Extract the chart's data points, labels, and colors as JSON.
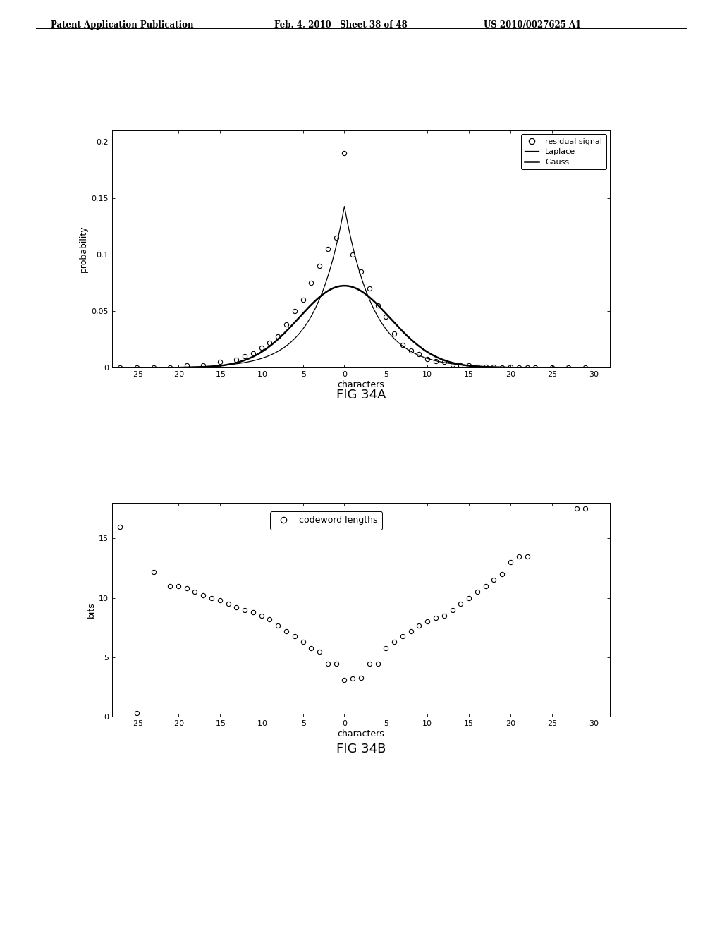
{
  "header_left": "Patent Application Publication",
  "header_mid": "Feb. 4, 2010   Sheet 38 of 48",
  "header_right": "US 2010/0027625 A1",
  "fig_a_caption": "FIG 34A",
  "fig_b_caption": "FIG 34B",
  "fig_a": {
    "ylabel": "probability",
    "xlabel": "characters",
    "xlim": [
      -28,
      32
    ],
    "ylim": [
      0,
      0.21
    ],
    "yticks": [
      0,
      0.05,
      0.1,
      0.15,
      0.2
    ],
    "ytick_labels": [
      "0",
      "0,05",
      "0,1",
      "0,15",
      "0,2"
    ],
    "xticks": [
      -25,
      -20,
      -15,
      -10,
      -5,
      0,
      5,
      10,
      15,
      20,
      25,
      30
    ],
    "residual_x": [
      -27,
      -25,
      -23,
      -21,
      -19,
      -17,
      -15,
      -13,
      -12,
      -11,
      -10,
      -9,
      -8,
      -7,
      -6,
      -5,
      -4,
      -3,
      -2,
      -1,
      0,
      1,
      2,
      3,
      4,
      5,
      6,
      7,
      8,
      9,
      10,
      11,
      12,
      13,
      14,
      15,
      16,
      17,
      18,
      19,
      20,
      21,
      22,
      23,
      25,
      27,
      29
    ],
    "residual_y": [
      0.0,
      0.0,
      0.0,
      0.0,
      0.002,
      0.002,
      0.005,
      0.007,
      0.01,
      0.013,
      0.018,
      0.022,
      0.028,
      0.038,
      0.05,
      0.06,
      0.075,
      0.09,
      0.105,
      0.115,
      0.19,
      0.1,
      0.085,
      0.07,
      0.055,
      0.045,
      0.03,
      0.02,
      0.015,
      0.012,
      0.008,
      0.006,
      0.005,
      0.003,
      0.002,
      0.002,
      0.001,
      0.001,
      0.001,
      0.0,
      0.001,
      0.0,
      0.0,
      0.0,
      0.0,
      0.0,
      0.0
    ],
    "laplace_b": 3.5,
    "gauss_sigma": 5.5,
    "legend_labels": [
      "residual signal",
      "Laplace",
      "Gauss"
    ]
  },
  "fig_b": {
    "ylabel": "bits",
    "xlabel": "characters",
    "xlim": [
      -28,
      32
    ],
    "ylim": [
      0,
      18
    ],
    "yticks": [
      0,
      5,
      10,
      15
    ],
    "xticks": [
      -25,
      -20,
      -15,
      -10,
      -5,
      0,
      5,
      10,
      15,
      20,
      25,
      30
    ],
    "codeword_x": [
      -27,
      -25,
      -23,
      -21,
      -20,
      -19,
      -18,
      -17,
      -16,
      -15,
      -14,
      -13,
      -12,
      -11,
      -10,
      -9,
      -8,
      -7,
      -6,
      -5,
      -4,
      -3,
      -2,
      -1,
      0,
      1,
      2,
      3,
      4,
      5,
      6,
      7,
      8,
      9,
      10,
      11,
      12,
      13,
      14,
      15,
      16,
      17,
      18,
      19,
      20,
      21,
      22,
      28,
      29
    ],
    "codeword_y": [
      16.0,
      0.3,
      12.2,
      11.0,
      11.0,
      10.8,
      10.5,
      10.2,
      10.0,
      9.8,
      9.5,
      9.2,
      9.0,
      8.8,
      8.5,
      8.2,
      7.7,
      7.2,
      6.8,
      6.3,
      5.8,
      5.5,
      4.5,
      4.5,
      3.1,
      3.2,
      3.3,
      4.5,
      4.5,
      5.8,
      6.3,
      6.8,
      7.2,
      7.7,
      8.0,
      8.3,
      8.5,
      9.0,
      9.5,
      10.0,
      10.5,
      11.0,
      11.5,
      12.0,
      13.0,
      13.5,
      13.5,
      17.5,
      17.5
    ],
    "legend_label": "codeword lengths"
  },
  "bg_color": "#ffffff",
  "text_color": "#000000"
}
